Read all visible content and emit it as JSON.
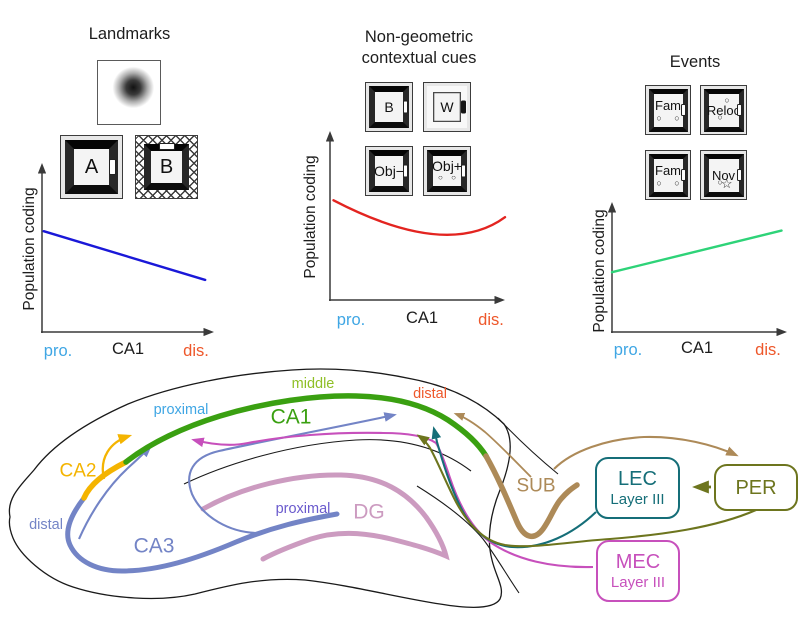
{
  "palette": {
    "plot_blue": "#1a18d8",
    "plot_red": "#e32420",
    "plot_green": "#2ed378",
    "pro_blue": "#3fa6e4",
    "dis_orange": "#ee572a",
    "axis_black": "#3a3a3a",
    "text_black": "#1d1d1d",
    "ca1_green": "#3aa011",
    "middle_green": "#8fbf26",
    "ca2_gold": "#f4b400",
    "ca3_blue": "#7384c6",
    "ca3_proximal_purple": "#6a5acd",
    "dg_pink": "#cc9bc0",
    "sub_brown": "#ad8a58",
    "lec_teal": "#156e78",
    "per_olive": "#6d751e",
    "mec_magenta": "#c750bc",
    "outline_black": "#1a1a1a"
  },
  "panels": [
    {
      "title_lines": [
        "Landmarks"
      ],
      "boxes": [
        {
          "label": "A",
          "tick": "right",
          "tick_color": "white",
          "frame": "dark"
        },
        {
          "label": "B",
          "tick": "top",
          "tick_color": "white",
          "frame": "dark",
          "outer": "hatched"
        }
      ],
      "ylabel": "Population coding",
      "x_left": "pro.",
      "x_mid": "CA1",
      "x_right": "dis."
    },
    {
      "title_lines": [
        "Non-geometric",
        "contextual cues"
      ],
      "boxes": [
        {
          "label": "B",
          "tick": "right",
          "tick_color": "white",
          "frame": "dark"
        },
        {
          "label": "W",
          "tick": "right",
          "tick_color": "black",
          "frame": "light"
        },
        {
          "label": "Obj−",
          "tick": "right",
          "tick_color": "white",
          "frame": "dark"
        },
        {
          "label": "Obj+",
          "tick": "right",
          "tick_color": "white",
          "frame": "dark",
          "marks_bottom": "○ ○"
        }
      ],
      "ylabel": "Population coding",
      "x_left": "pro.",
      "x_mid": "CA1",
      "x_right": "dis."
    },
    {
      "title_lines": [
        "Events"
      ],
      "boxes": [
        {
          "label": "Fam",
          "tick": "right",
          "tick_color": "white",
          "frame": "dark",
          "marks_bottom": "○ ○"
        },
        {
          "label": "Reloc",
          "tick": "right",
          "tick_color": "white",
          "frame": "dark",
          "mark_top_right": "○",
          "mark_bottom_left": "○"
        },
        {
          "label": "Fam",
          "tick": "right",
          "tick_color": "white",
          "frame": "dark",
          "marks_bottom": "○ ○"
        },
        {
          "label": "Nov",
          "tick": "right",
          "tick_color": "white",
          "frame": "dark",
          "mark_bottom_left": "○",
          "mark_bottom_right": "☆"
        }
      ],
      "ylabel": "Population coding",
      "x_left": "pro.",
      "x_mid": "CA1",
      "x_right": "dis."
    }
  ],
  "chart_data": [
    {
      "type": "line",
      "title": "Landmarks",
      "ylabel": "Population coding",
      "xlabel": "CA1 proximodistal axis",
      "x_axis_labels": [
        "pro.",
        "CA1",
        "dis."
      ],
      "numeric_axes": false,
      "grid": false,
      "legend": false,
      "series": [
        {
          "name": "landmark population coding",
          "color_key": "plot_blue",
          "trend": "decreasing",
          "points_rel": [
            [
              0.01,
              0.6
            ],
            [
              0.96,
              0.31
            ]
          ]
        }
      ]
    },
    {
      "type": "line",
      "title": "Non-geometric contextual cues",
      "ylabel": "Population coding",
      "xlabel": "CA1 proximodistal axis",
      "x_axis_labels": [
        "pro.",
        "CA1",
        "dis."
      ],
      "numeric_axes": false,
      "grid": false,
      "legend": false,
      "series": [
        {
          "name": "non-geometric contextual cue population coding",
          "color_key": "plot_red",
          "trend": "U-shaped, dip mid-distal",
          "points_rel": [
            [
              0.02,
              0.59
            ],
            [
              0.59,
              0.39
            ],
            [
              1.0,
              0.49
            ]
          ]
        }
      ]
    },
    {
      "type": "line",
      "title": "Events",
      "ylabel": "Population coding",
      "xlabel": "CA1 proximodistal axis",
      "x_axis_labels": [
        "pro.",
        "CA1",
        "dis."
      ],
      "numeric_axes": false,
      "grid": false,
      "legend": false,
      "series": [
        {
          "name": "event population coding",
          "color_key": "plot_green",
          "trend": "increasing",
          "points_rel": [
            [
              0.0,
              0.46
            ],
            [
              0.98,
              0.78
            ]
          ]
        }
      ]
    }
  ],
  "anatomy": {
    "regions": {
      "ca1": "CA1",
      "ca2": "CA2",
      "ca3": "CA3",
      "dg": "DG",
      "sub": "SUB"
    },
    "axis_labels": {
      "ca1_proximal": "proximal",
      "ca1_middle": "middle",
      "ca1_distal": "distal",
      "ca3_distal": "distal",
      "ca3_proximal": "proximal"
    },
    "boxes": {
      "lec": {
        "line1": "LEC",
        "line2": "Layer III"
      },
      "per": {
        "label": "PER"
      },
      "mec": {
        "line1": "MEC",
        "line2": "Layer III"
      }
    },
    "connections": [
      {
        "from": "CA2",
        "to": "proximal CA1",
        "color_key": "ca2_gold"
      },
      {
        "from": "distal CA3",
        "to": "proximal CA1",
        "color_key": "ca3_blue"
      },
      {
        "from": "proximal CA3",
        "to": "distal CA1",
        "color_key": "ca3_blue"
      },
      {
        "from": "MEC Layer III",
        "to": "proximal CA1",
        "color_key": "mec_magenta"
      },
      {
        "from": "LEC Layer III",
        "to": "distal CA1",
        "color_key": "lec_teal"
      },
      {
        "from": "PER",
        "to": "distal CA1",
        "color_key": "per_olive"
      },
      {
        "from": "PER",
        "to": "LEC Layer III",
        "color_key": "per_olive"
      },
      {
        "from": "SUB",
        "to": "distal CA1",
        "color_key": "sub_brown"
      },
      {
        "from": "SUB",
        "to": "PER",
        "color_key": "sub_brown"
      }
    ]
  }
}
